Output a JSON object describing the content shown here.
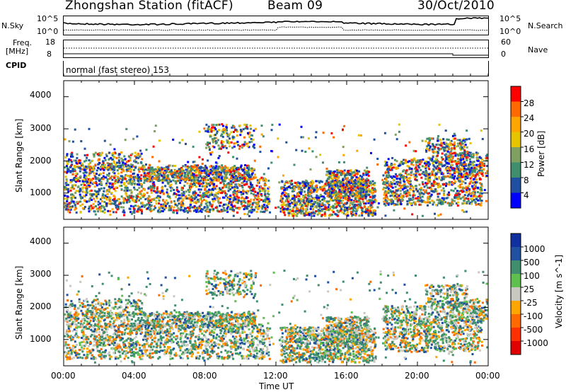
{
  "header": {
    "station": "Zhongshan Station (fitACF)",
    "beam": "Beam 09",
    "date": "30/Oct/2010"
  },
  "noise_panel": {
    "left_label": "N.Sky",
    "right_label": "N.Search",
    "left_ticks": [
      "10^5",
      "10^0"
    ],
    "right_ticks": [
      "10^5",
      "10^0"
    ]
  },
  "freq_panel": {
    "left_label": "Freq.",
    "left_unit": "[MHz]",
    "right_label": "Nave",
    "left_ticks": [
      "18",
      "8"
    ],
    "right_ticks": [
      "60",
      "0"
    ]
  },
  "cpid": {
    "label": "CPID",
    "mode": "normal (fast stereo) 153"
  },
  "chart_data": [
    {
      "type": "heatmap",
      "name": "power",
      "ylabel": "Slant Range [km]",
      "yticks": [
        "4000",
        "3000",
        "2000",
        "1000"
      ],
      "ylim": [
        180,
        4500
      ],
      "colorbar_label": "Power [dB]",
      "colorbar_ticks": [
        "28",
        "24",
        "20",
        "16",
        "12",
        "8",
        "4"
      ],
      "colorbar_colors": [
        "#ff0000",
        "#ff6a00",
        "#ffa500",
        "#e6c400",
        "#7fa060",
        "#3f8f6e",
        "#1f4fa0",
        "#0000ff"
      ]
    },
    {
      "type": "heatmap",
      "name": "velocity",
      "ylabel": "Slant Range [km]",
      "yticks": [
        "4000",
        "3000",
        "2000",
        "1000"
      ],
      "ylim": [
        180,
        4500
      ],
      "colorbar_label": "Velocity [m s^-1]",
      "colorbar_ticks": [
        "1000",
        "500",
        "100",
        "25",
        "-25",
        "-100",
        "-500",
        "-1000"
      ],
      "colorbar_colors": [
        "#1030a0",
        "#2050a0",
        "#3f8f6e",
        "#5fbf4f",
        "#c8c8c0",
        "#ffa500",
        "#ff6a00",
        "#ff3000",
        "#e00000"
      ]
    }
  ],
  "xaxis": {
    "label": "Time UT",
    "ticks": [
      "00:00",
      "04:00",
      "08:00",
      "12:00",
      "16:00",
      "20:00",
      "00:00"
    ]
  }
}
